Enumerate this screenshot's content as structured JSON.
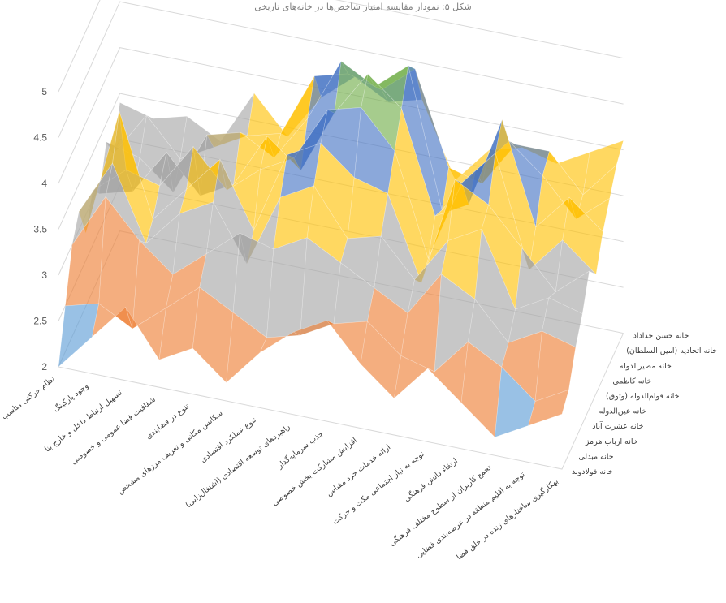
{
  "chart_data": {
    "type": "surface",
    "title": "",
    "header_text": "ﺷﮑﻞ ۵: ﻧﻤﻮﺩﺍﺭ ﻣﻘﺎﯾﺴﻪ ﺍﻣﺘﯿﺎﺯ ﺷﺎﺧﺺ‌ﻫﺎ ﺩﺭ ﺧﺎﻧﻪ‌ﻫﺎﯼ ﺗﺎﺭﯾﺨﯽ",
    "zlim": [
      2,
      5
    ],
    "z_ticks": [
      "2",
      "2.5",
      "3",
      "3.5",
      "4",
      "4.5",
      "5"
    ],
    "band_colors": [
      "#5b9bd5",
      "#ed7d31",
      "#a5a5a5",
      "#ffc000",
      "#4472c4",
      "#70ad47"
    ],
    "categories": [
      "نظام حرکتی مناسب",
      "وجود پارکینگ",
      "تسهیل ارتباط داخل و خارج بنا",
      "شفافیت فضا عمومی و خصوصی",
      "تنوع در فضابندی",
      "سکانس مکانی و تعریف مرزهای مشخص",
      "تنوع عملکرد اقتصادی",
      "راهبردهای توسعه اقتصادی (اشتغال‌زایی)",
      "جذب سرمایه‌گذار",
      "افزایش مشارکت بخش خصوصی",
      "ارائه خدمات خرد مقیاس",
      "توجه به نیاز اجتماعی مکث و حرکت",
      "ارتقاء دانش فرهنگی",
      "تجمع کاربران از سطوح مختلف فرهنگی",
      "توجه به اقلیم منطقه در عرصه‌بندی فضایی",
      "بهکارگیری ساختارهای زنده در خلق فضا"
    ],
    "series": [
      {
        "name": "خانه فولادوند",
        "values": [
          2.0,
          2.4,
          2.8,
          2.3,
          2.5,
          2.2,
          2.6,
          2.9,
          3.1,
          2.7,
          2.4,
          2.8,
          2.5,
          2.2,
          2.4,
          2.6
        ]
      },
      {
        "name": "خانه مبدلی",
        "values": [
          2.5,
          2.6,
          2.4,
          2.7,
          3.0,
          2.8,
          2.6,
          2.7,
          2.9,
          3.0,
          2.7,
          2.6,
          3.0,
          2.8,
          2.5,
          2.7
        ]
      },
      {
        "name": "خانه ارباب هرمز",
        "values": [
          3.0,
          3.6,
          3.2,
          2.9,
          3.2,
          3.5,
          3.4,
          3.6,
          3.4,
          3.2,
          3.0,
          3.5,
          3.3,
          2.9,
          3.1,
          3.0
        ]
      },
      {
        "name": "خانه عشرت آباد",
        "values": [
          3.2,
          3.8,
          3.0,
          3.4,
          3.6,
          3.0,
          3.8,
          4.0,
          3.5,
          3.6,
          3.2,
          3.7,
          3.9,
          3.1,
          3.3,
          3.2
        ]
      },
      {
        "name": "خانه عین‌الدوله",
        "values": [
          2.8,
          4.2,
          3.1,
          3.5,
          3.9,
          3.2,
          4.1,
          4.3,
          4.0,
          3.9,
          3.0,
          4.2,
          4.0,
          3.6,
          3.2,
          3.5
        ]
      },
      {
        "name": "خانه قوام‌الدوله (وثوق)",
        "values": [
          3.1,
          3.4,
          3.3,
          3.8,
          3.4,
          3.7,
          3.9,
          4.5,
          4.6,
          4.2,
          3.1,
          4.0,
          4.4,
          3.2,
          3.6,
          3.3
        ]
      },
      {
        "name": "خانه کاظمی",
        "values": [
          2.9,
          3.0,
          3.5,
          3.1,
          3.3,
          3.9,
          3.6,
          4.3,
          4.8,
          4.5,
          3.4,
          3.6,
          4.6,
          3.5,
          3.9,
          3.6
        ]
      },
      {
        "name": "خانه مصیرالدوله",
        "values": [
          3.3,
          3.2,
          2.9,
          3.6,
          3.7,
          3.5,
          4.0,
          4.7,
          4.5,
          4.8,
          3.3,
          3.8,
          4.2,
          3.9,
          3.5,
          3.8
        ]
      },
      {
        "name": "خانه اتحادیه (امین السلطان)",
        "values": [
          3.0,
          3.5,
          3.1,
          3.3,
          3.5,
          3.6,
          4.3,
          4.4,
          4.3,
          4.6,
          3.6,
          3.5,
          4.0,
          4.0,
          3.6,
          4.0
        ]
      },
      {
        "name": "خانه حسن خداداد",
        "values": [
          3.4,
          3.3,
          3.4,
          3.2,
          3.8,
          3.4,
          3.9,
          4.2,
          4.0,
          4.1,
          3.3,
          3.7,
          3.8,
          3.7,
          3.9,
          4.1
        ]
      }
    ]
  }
}
